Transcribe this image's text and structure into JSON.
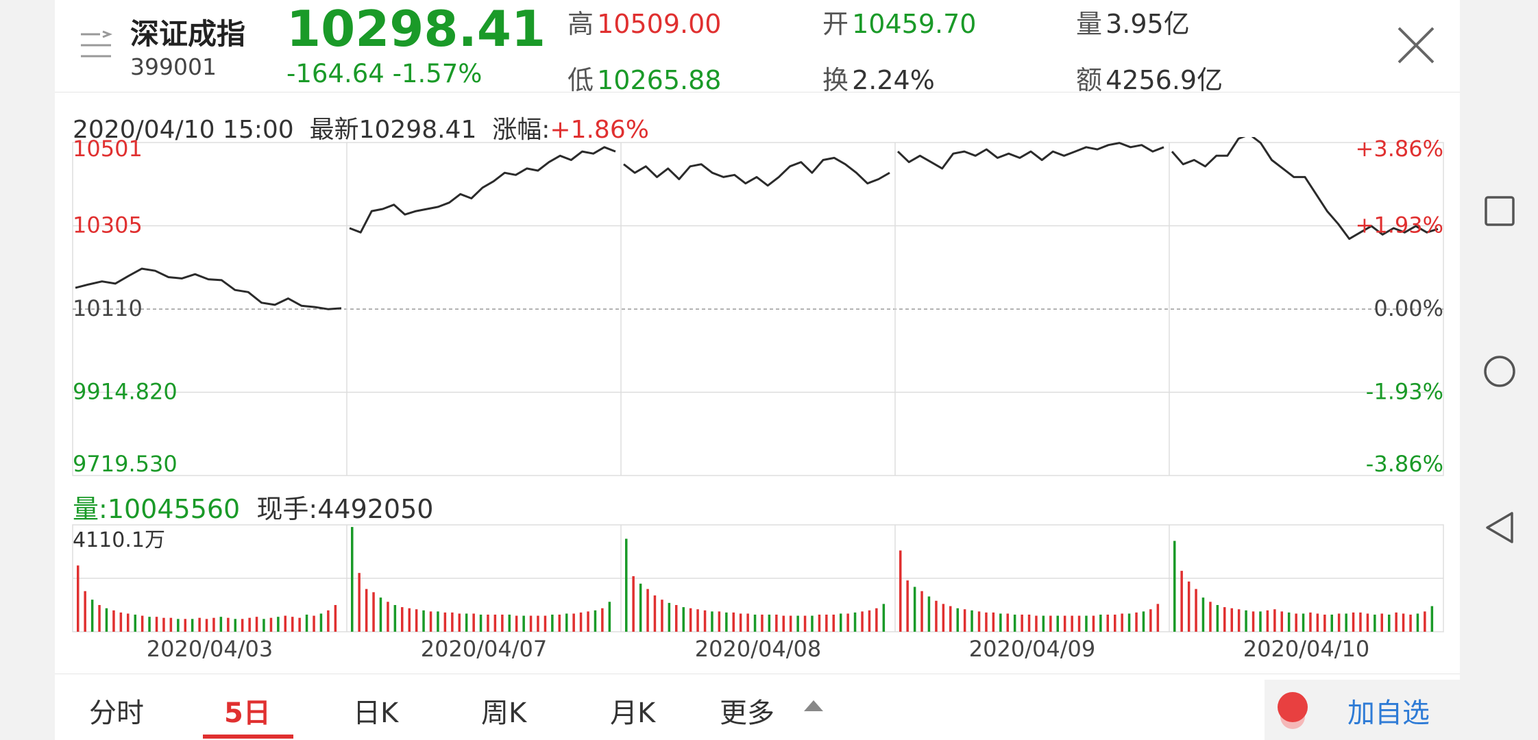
{
  "header": {
    "stock_name": "深证成指",
    "stock_code": "399001",
    "price": "10298.41",
    "change": "-164.64  -1.57%",
    "stats": {
      "high_label": "高",
      "high": "10509.00",
      "open_label": "开",
      "open": "10459.70",
      "volume_label": "量",
      "volume": "3.95亿",
      "low_label": "低",
      "low": "10265.88",
      "turnover_label": "换",
      "turnover": "2.24%",
      "amount_label": "额",
      "amount": "4256.9亿"
    }
  },
  "info": {
    "datetime": "2020/04/10 15:00",
    "latest_label": "最新",
    "latest": "10298.41",
    "change_label": "涨幅:",
    "change_pct": "+1.86%"
  },
  "volume_info": {
    "vol_label": "量:",
    "vol": "10045560",
    "now_label": "现手:",
    "now": "4492050",
    "max_label": "4110.1万"
  },
  "colors": {
    "up": "#e03030",
    "down": "#1a9a28",
    "line": "#2b2b2b",
    "accent_blue": "#2e7bd6"
  },
  "chart_data": {
    "type": "line",
    "title": "",
    "base_price": 10110,
    "ylim": [
      9719.53,
      10501
    ],
    "y_ticks_left": [
      "10501",
      "10305",
      "10110",
      "9914.820",
      "9719.530"
    ],
    "y_ticks_right": [
      "+3.86%",
      "+1.93%",
      "0.00%",
      "-1.93%",
      "-3.86%"
    ],
    "days": [
      "2020/04/03",
      "2020/04/07",
      "2020/04/08",
      "2020/04/09",
      "2020/04/10"
    ],
    "series": [
      {
        "values": [
          [
            10160,
            10168,
            10175,
            10170,
            10188,
            10205,
            10200,
            10185,
            10182,
            10192,
            10180,
            10178,
            10155,
            10150,
            10125,
            10120,
            10135,
            10118,
            10115,
            10110,
            10112
          ],
          [
            10300,
            10290,
            10340,
            10345,
            10355,
            10332,
            10340,
            10345,
            10350,
            10360,
            10380,
            10370,
            10395,
            10410,
            10430,
            10425,
            10440,
            10435,
            10455,
            10470,
            10460,
            10480,
            10475,
            10490,
            10480
          ],
          [
            10450,
            10430,
            10445,
            10420,
            10440,
            10415,
            10445,
            10450,
            10430,
            10420,
            10425,
            10405,
            10420,
            10400,
            10420,
            10445,
            10455,
            10430,
            10460,
            10465,
            10450,
            10430,
            10405,
            10415,
            10430
          ],
          [
            10480,
            10455,
            10470,
            10455,
            10440,
            10475,
            10480,
            10470,
            10485,
            10465,
            10475,
            10465,
            10480,
            10460,
            10480,
            10470,
            10480,
            10490,
            10485,
            10495,
            10500,
            10490,
            10495,
            10480,
            10490
          ],
          [
            10480,
            10450,
            10460,
            10445,
            10470,
            10470,
            10510,
            10520,
            10500,
            10460,
            10440,
            10420,
            10420,
            10380,
            10340,
            10310,
            10275,
            10290,
            10305,
            10285,
            10300,
            10290,
            10305,
            10290,
            10298
          ]
        ]
      }
    ],
    "volume": [
      [
        62,
        38,
        30,
        25,
        22,
        20,
        18,
        17,
        16,
        15,
        14,
        14,
        13,
        13,
        12,
        12,
        12,
        13,
        12,
        13,
        14,
        13,
        12,
        12,
        13,
        14,
        12,
        13,
        14,
        15,
        14,
        13,
        16,
        15,
        17,
        20,
        25
      ],
      [
        98,
        55,
        40,
        37,
        32,
        28,
        25,
        23,
        22,
        21,
        20,
        19,
        19,
        18,
        18,
        17,
        17,
        17,
        16,
        16,
        16,
        16,
        16,
        15,
        15,
        15,
        15,
        15,
        16,
        16,
        17,
        17,
        18,
        19,
        20,
        22,
        28
      ],
      [
        87,
        52,
        45,
        40,
        34,
        30,
        27,
        25,
        23,
        22,
        21,
        20,
        19,
        19,
        18,
        18,
        17,
        17,
        16,
        16,
        16,
        16,
        15,
        15,
        15,
        15,
        15,
        16,
        16,
        16,
        17,
        17,
        18,
        19,
        20,
        22,
        26
      ],
      [
        76,
        48,
        42,
        38,
        33,
        29,
        26,
        24,
        22,
        21,
        20,
        19,
        18,
        18,
        17,
        17,
        16,
        16,
        16,
        15,
        15,
        15,
        15,
        15,
        15,
        15,
        15,
        15,
        16,
        16,
        16,
        17,
        17,
        18,
        19,
        21,
        26
      ],
      [
        85,
        57,
        47,
        40,
        32,
        28,
        25,
        23,
        22,
        21,
        20,
        19,
        19,
        20,
        21,
        19,
        18,
        17,
        17,
        18,
        17,
        16,
        16,
        17,
        17,
        18,
        18,
        17,
        16,
        17,
        16,
        18,
        17,
        16,
        17,
        19,
        24
      ]
    ]
  },
  "tabs": [
    {
      "label": "分时",
      "active": false
    },
    {
      "label": "5日",
      "active": true
    },
    {
      "label": "日K",
      "active": false
    },
    {
      "label": "周K",
      "active": false
    },
    {
      "label": "月K",
      "active": false
    },
    {
      "label": "更多",
      "active": false
    }
  ],
  "favorite_label": "加自选",
  "icons": {
    "menu": "menu-lines-icon",
    "close": "close-x-icon",
    "nav_recent": "square-icon",
    "nav_home": "circle-icon",
    "nav_back": "triangle-back-icon"
  }
}
